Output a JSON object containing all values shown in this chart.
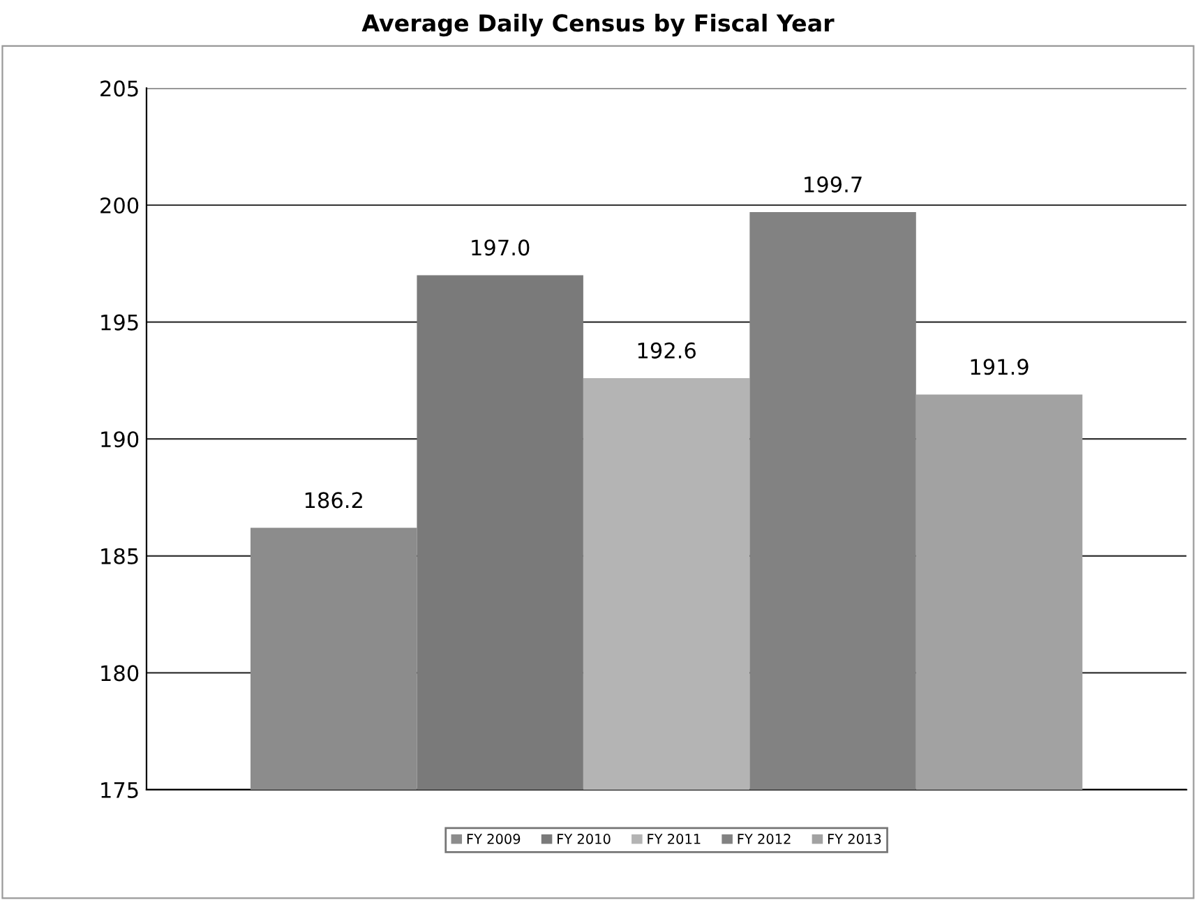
{
  "chart_data": {
    "type": "bar",
    "title": "Average Daily Census by Fiscal Year",
    "categories": [
      null
    ],
    "series": [
      {
        "name": "FY 2009",
        "color": "#8c8c8c",
        "values": [
          186.2
        ],
        "value_labels": [
          "186.2"
        ]
      },
      {
        "name": "FY 2010",
        "color": "#7a7a7a",
        "values": [
          197.0
        ],
        "value_labels": [
          "197.0"
        ]
      },
      {
        "name": "FY 2011",
        "color": "#b4b4b4",
        "values": [
          192.6
        ],
        "value_labels": [
          "192.6"
        ]
      },
      {
        "name": "FY 2012",
        "color": "#828282",
        "values": [
          199.7
        ],
        "value_labels": [
          "199.7"
        ]
      },
      {
        "name": "FY 2013",
        "color": "#a2a2a2",
        "values": [
          191.9
        ],
        "value_labels": [
          "191.9"
        ]
      }
    ],
    "ylim": [
      175,
      205
    ],
    "yticks": [
      175,
      180,
      185,
      190,
      195,
      200,
      205
    ],
    "grid": "y",
    "legend": "bottom"
  }
}
